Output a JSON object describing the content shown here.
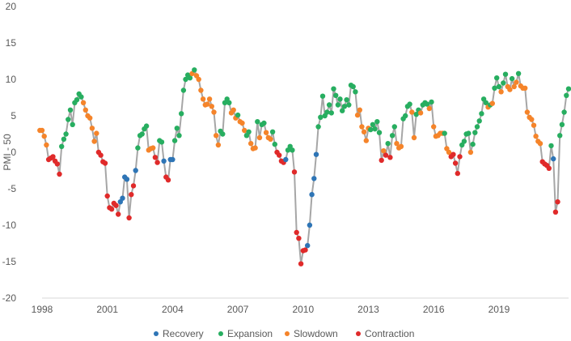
{
  "chart_data": {
    "type": "line",
    "title": "",
    "xlabel": "",
    "ylabel": "PMI - 50",
    "xlim": [
      1998,
      2022.2
    ],
    "ylim": [
      -20,
      20
    ],
    "y_ticks": [
      "20",
      "15",
      "10",
      "5",
      "0",
      "-5",
      "-10",
      "-15",
      "-20"
    ],
    "x_ticks": [
      "1998",
      "2001",
      "2004",
      "2007",
      "2010",
      "2013",
      "2016",
      "2019"
    ],
    "grid": false,
    "legend_position": "bottom",
    "line_color": "#a6a6a6",
    "phase_colors": {
      "Recovery": "#2e75b6",
      "Expansion": "#27ae60",
      "Slowdown": "#f5842a",
      "Contraction": "#e02a2a"
    },
    "legend": [
      "Recovery",
      "Expansion",
      "Slowdown",
      "Contraction"
    ],
    "points": [
      [
        1997.9,
        3.0,
        "Slowdown"
      ],
      [
        1998.0,
        3.0,
        "Slowdown"
      ],
      [
        1998.1,
        2.2,
        "Slowdown"
      ],
      [
        1998.2,
        1.0,
        "Slowdown"
      ],
      [
        1998.3,
        -1.0,
        "Contraction"
      ],
      [
        1998.4,
        -0.8,
        "Contraction"
      ],
      [
        1998.5,
        -0.6,
        "Contraction"
      ],
      [
        1998.6,
        -1.2,
        "Contraction"
      ],
      [
        1998.7,
        -1.6,
        "Contraction"
      ],
      [
        1998.8,
        -3.0,
        "Contraction"
      ],
      [
        1998.9,
        0.8,
        "Expansion"
      ],
      [
        1999.0,
        1.8,
        "Expansion"
      ],
      [
        1999.1,
        2.5,
        "Expansion"
      ],
      [
        1999.2,
        4.5,
        "Expansion"
      ],
      [
        1999.3,
        5.8,
        "Expansion"
      ],
      [
        1999.4,
        3.8,
        "Expansion"
      ],
      [
        1999.5,
        6.8,
        "Expansion"
      ],
      [
        1999.6,
        7.2,
        "Expansion"
      ],
      [
        1999.7,
        8.0,
        "Expansion"
      ],
      [
        1999.8,
        7.6,
        "Expansion"
      ],
      [
        1999.9,
        6.8,
        "Slowdown"
      ],
      [
        2000.0,
        5.8,
        "Slowdown"
      ],
      [
        2000.1,
        5.0,
        "Slowdown"
      ],
      [
        2000.2,
        4.7,
        "Slowdown"
      ],
      [
        2000.3,
        3.3,
        "Slowdown"
      ],
      [
        2000.4,
        1.5,
        "Slowdown"
      ],
      [
        2000.5,
        2.6,
        "Slowdown"
      ],
      [
        2000.6,
        0.0,
        "Contraction"
      ],
      [
        2000.7,
        -0.4,
        "Contraction"
      ],
      [
        2000.8,
        -1.3,
        "Contraction"
      ],
      [
        2000.9,
        -1.5,
        "Contraction"
      ],
      [
        2001.0,
        -6.0,
        "Contraction"
      ],
      [
        2001.1,
        -7.6,
        "Contraction"
      ],
      [
        2001.2,
        -7.8,
        "Contraction"
      ],
      [
        2001.3,
        -7.0,
        "Contraction"
      ],
      [
        2001.4,
        -7.3,
        "Contraction"
      ],
      [
        2001.5,
        -8.5,
        "Contraction"
      ],
      [
        2001.6,
        -6.8,
        "Recovery"
      ],
      [
        2001.7,
        -6.3,
        "Recovery"
      ],
      [
        2001.8,
        -3.4,
        "Recovery"
      ],
      [
        2001.9,
        -3.7,
        "Recovery"
      ],
      [
        2002.0,
        -9.0,
        "Contraction"
      ],
      [
        2002.1,
        -5.8,
        "Contraction"
      ],
      [
        2002.2,
        -4.6,
        "Contraction"
      ],
      [
        2002.3,
        -2.5,
        "Recovery"
      ],
      [
        2002.4,
        0.6,
        "Expansion"
      ],
      [
        2002.5,
        2.3,
        "Expansion"
      ],
      [
        2002.6,
        2.5,
        "Expansion"
      ],
      [
        2002.7,
        3.2,
        "Expansion"
      ],
      [
        2002.8,
        3.6,
        "Expansion"
      ],
      [
        2002.9,
        0.3,
        "Slowdown"
      ],
      [
        2003.0,
        0.5,
        "Slowdown"
      ],
      [
        2003.1,
        0.6,
        "Slowdown"
      ],
      [
        2003.2,
        -0.7,
        "Contraction"
      ],
      [
        2003.3,
        -1.4,
        "Contraction"
      ],
      [
        2003.4,
        1.6,
        "Expansion"
      ],
      [
        2003.5,
        1.4,
        "Expansion"
      ],
      [
        2003.6,
        -1.2,
        "Recovery"
      ],
      [
        2003.7,
        -3.4,
        "Contraction"
      ],
      [
        2003.8,
        -3.8,
        "Contraction"
      ],
      [
        2003.9,
        -1.0,
        "Recovery"
      ],
      [
        2004.0,
        -1.0,
        "Recovery"
      ],
      [
        2004.1,
        1.6,
        "Expansion"
      ],
      [
        2004.2,
        3.3,
        "Expansion"
      ],
      [
        2004.3,
        2.3,
        "Expansion"
      ],
      [
        2004.4,
        5.3,
        "Expansion"
      ],
      [
        2004.5,
        8.5,
        "Expansion"
      ],
      [
        2004.6,
        10.0,
        "Expansion"
      ],
      [
        2004.7,
        10.6,
        "Expansion"
      ],
      [
        2004.8,
        10.2,
        "Expansion"
      ],
      [
        2004.9,
        10.8,
        "Slowdown"
      ],
      [
        2005.0,
        11.3,
        "Expansion"
      ],
      [
        2005.1,
        10.5,
        "Slowdown"
      ],
      [
        2005.2,
        10.0,
        "Slowdown"
      ],
      [
        2005.3,
        8.5,
        "Slowdown"
      ],
      [
        2005.4,
        7.3,
        "Slowdown"
      ],
      [
        2005.5,
        6.5,
        "Slowdown"
      ],
      [
        2005.6,
        6.6,
        "Slowdown"
      ],
      [
        2005.7,
        7.3,
        "Slowdown"
      ],
      [
        2005.8,
        6.3,
        "Slowdown"
      ],
      [
        2005.9,
        5.5,
        "Slowdown"
      ],
      [
        2006.0,
        2.3,
        "Slowdown"
      ],
      [
        2006.1,
        1.0,
        "Slowdown"
      ],
      [
        2006.2,
        2.9,
        "Expansion"
      ],
      [
        2006.3,
        2.5,
        "Expansion"
      ],
      [
        2006.4,
        6.8,
        "Expansion"
      ],
      [
        2006.5,
        7.3,
        "Expansion"
      ],
      [
        2006.6,
        6.8,
        "Expansion"
      ],
      [
        2006.7,
        5.4,
        "Slowdown"
      ],
      [
        2006.8,
        5.8,
        "Slowdown"
      ],
      [
        2006.9,
        4.7,
        "Slowdown"
      ],
      [
        2007.0,
        5.1,
        "Expansion"
      ],
      [
        2007.1,
        4.2,
        "Slowdown"
      ],
      [
        2007.2,
        4.0,
        "Slowdown"
      ],
      [
        2007.3,
        3.0,
        "Slowdown"
      ],
      [
        2007.4,
        2.3,
        "Expansion"
      ],
      [
        2007.5,
        2.8,
        "Expansion"
      ],
      [
        2007.6,
        1.2,
        "Slowdown"
      ],
      [
        2007.7,
        0.5,
        "Slowdown"
      ],
      [
        2007.8,
        0.6,
        "Slowdown"
      ],
      [
        2007.9,
        4.2,
        "Expansion"
      ],
      [
        2008.0,
        2.0,
        "Slowdown"
      ],
      [
        2008.1,
        3.8,
        "Expansion"
      ],
      [
        2008.2,
        4.0,
        "Expansion"
      ],
      [
        2008.3,
        2.7,
        "Slowdown"
      ],
      [
        2008.4,
        2.0,
        "Slowdown"
      ],
      [
        2008.5,
        1.8,
        "Slowdown"
      ],
      [
        2008.6,
        2.8,
        "Expansion"
      ],
      [
        2008.7,
        1.1,
        "Expansion"
      ],
      [
        2008.8,
        0.0,
        "Contraction"
      ],
      [
        2008.9,
        -0.4,
        "Contraction"
      ],
      [
        2009.0,
        -1.2,
        "Contraction"
      ],
      [
        2009.1,
        -1.4,
        "Contraction"
      ],
      [
        2009.2,
        -1.0,
        "Recovery"
      ],
      [
        2009.3,
        0.3,
        "Expansion"
      ],
      [
        2009.4,
        0.8,
        "Expansion"
      ],
      [
        2009.5,
        0.3,
        "Expansion"
      ],
      [
        2009.6,
        -2.7,
        "Contraction"
      ],
      [
        2009.7,
        -11.0,
        "Contraction"
      ],
      [
        2009.8,
        -11.8,
        "Contraction"
      ],
      [
        2009.9,
        -15.3,
        "Contraction"
      ],
      [
        2010.0,
        -13.5,
        "Contraction"
      ],
      [
        2010.1,
        -13.4,
        "Contraction"
      ],
      [
        2010.2,
        -12.8,
        "Recovery"
      ],
      [
        2010.3,
        -10.0,
        "Recovery"
      ],
      [
        2010.4,
        -5.8,
        "Recovery"
      ],
      [
        2010.5,
        -3.6,
        "Recovery"
      ],
      [
        2010.6,
        -0.3,
        "Recovery"
      ],
      [
        2010.7,
        3.5,
        "Expansion"
      ],
      [
        2010.8,
        4.8,
        "Expansion"
      ],
      [
        2010.9,
        7.7,
        "Expansion"
      ],
      [
        2011.0,
        5.0,
        "Expansion"
      ],
      [
        2011.1,
        5.5,
        "Expansion"
      ],
      [
        2011.2,
        6.5,
        "Expansion"
      ],
      [
        2011.3,
        5.4,
        "Expansion"
      ],
      [
        2011.4,
        8.7,
        "Expansion"
      ],
      [
        2011.5,
        7.8,
        "Expansion"
      ],
      [
        2011.6,
        6.5,
        "Expansion"
      ],
      [
        2011.7,
        7.3,
        "Expansion"
      ],
      [
        2011.8,
        5.7,
        "Expansion"
      ],
      [
        2011.9,
        6.3,
        "Expansion"
      ],
      [
        2012.0,
        7.2,
        "Expansion"
      ],
      [
        2012.1,
        6.5,
        "Expansion"
      ],
      [
        2012.2,
        9.2,
        "Expansion"
      ],
      [
        2012.3,
        9.0,
        "Expansion"
      ],
      [
        2012.4,
        8.3,
        "Expansion"
      ],
      [
        2012.5,
        5.1,
        "Slowdown"
      ],
      [
        2012.6,
        5.8,
        "Slowdown"
      ],
      [
        2012.7,
        3.5,
        "Slowdown"
      ],
      [
        2012.8,
        2.8,
        "Slowdown"
      ],
      [
        2012.9,
        1.6,
        "Slowdown"
      ],
      [
        2013.0,
        3.3,
        "Slowdown"
      ],
      [
        2013.1,
        3.1,
        "Expansion"
      ],
      [
        2013.2,
        3.8,
        "Expansion"
      ],
      [
        2013.3,
        3.2,
        "Expansion"
      ],
      [
        2013.4,
        4.2,
        "Expansion"
      ],
      [
        2013.5,
        2.7,
        "Expansion"
      ],
      [
        2013.6,
        -1.1,
        "Contraction"
      ],
      [
        2013.7,
        0.2,
        "Slowdown"
      ],
      [
        2013.8,
        -0.4,
        "Contraction"
      ],
      [
        2013.9,
        1.2,
        "Expansion"
      ],
      [
        2014.0,
        -0.7,
        "Contraction"
      ],
      [
        2014.1,
        2.3,
        "Expansion"
      ],
      [
        2014.2,
        3.5,
        "Expansion"
      ],
      [
        2014.3,
        1.2,
        "Slowdown"
      ],
      [
        2014.4,
        0.6,
        "Slowdown"
      ],
      [
        2014.5,
        0.8,
        "Slowdown"
      ],
      [
        2014.6,
        4.6,
        "Expansion"
      ],
      [
        2014.7,
        5.0,
        "Expansion"
      ],
      [
        2014.8,
        6.3,
        "Expansion"
      ],
      [
        2014.9,
        6.6,
        "Expansion"
      ],
      [
        2015.0,
        5.5,
        "Slowdown"
      ],
      [
        2015.1,
        2.0,
        "Slowdown"
      ],
      [
        2015.2,
        5.2,
        "Expansion"
      ],
      [
        2015.3,
        5.8,
        "Expansion"
      ],
      [
        2015.4,
        5.4,
        "Slowdown"
      ],
      [
        2015.5,
        6.5,
        "Expansion"
      ],
      [
        2015.6,
        6.8,
        "Expansion"
      ],
      [
        2015.7,
        6.6,
        "Expansion"
      ],
      [
        2015.8,
        6.0,
        "Slowdown"
      ],
      [
        2015.9,
        6.9,
        "Expansion"
      ],
      [
        2016.0,
        3.5,
        "Slowdown"
      ],
      [
        2016.1,
        2.2,
        "Slowdown"
      ],
      [
        2016.2,
        2.3,
        "Slowdown"
      ],
      [
        2016.3,
        2.6,
        "Slowdown"
      ],
      [
        2016.4,
        2.6,
        "Slowdown"
      ],
      [
        2016.5,
        2.6,
        "Expansion"
      ],
      [
        2016.6,
        0.5,
        "Slowdown"
      ],
      [
        2016.7,
        0.0,
        "Slowdown"
      ],
      [
        2016.8,
        -0.6,
        "Contraction"
      ],
      [
        2016.9,
        -0.3,
        "Contraction"
      ],
      [
        2017.0,
        -1.5,
        "Contraction"
      ],
      [
        2017.1,
        -2.9,
        "Contraction"
      ],
      [
        2017.2,
        -0.6,
        "Contraction"
      ],
      [
        2017.3,
        1.0,
        "Expansion"
      ],
      [
        2017.4,
        1.5,
        "Expansion"
      ],
      [
        2017.5,
        2.5,
        "Expansion"
      ],
      [
        2017.6,
        2.6,
        "Expansion"
      ],
      [
        2017.7,
        0.0,
        "Slowdown"
      ],
      [
        2017.8,
        1.1,
        "Expansion"
      ],
      [
        2017.9,
        2.7,
        "Expansion"
      ],
      [
        2018.0,
        3.5,
        "Expansion"
      ],
      [
        2018.1,
        4.3,
        "Expansion"
      ],
      [
        2018.2,
        5.3,
        "Expansion"
      ],
      [
        2018.3,
        7.3,
        "Expansion"
      ],
      [
        2018.4,
        6.8,
        "Expansion"
      ],
      [
        2018.5,
        6.2,
        "Slowdown"
      ],
      [
        2018.6,
        6.5,
        "Expansion"
      ],
      [
        2018.7,
        6.7,
        "Slowdown"
      ],
      [
        2018.8,
        8.8,
        "Expansion"
      ],
      [
        2018.9,
        10.2,
        "Expansion"
      ],
      [
        2019.0,
        9.0,
        "Expansion"
      ],
      [
        2019.1,
        8.3,
        "Slowdown"
      ],
      [
        2019.2,
        9.5,
        "Expansion"
      ],
      [
        2019.3,
        10.7,
        "Expansion"
      ],
      [
        2019.4,
        9.0,
        "Slowdown"
      ],
      [
        2019.5,
        8.6,
        "Slowdown"
      ],
      [
        2019.6,
        10.1,
        "Expansion"
      ],
      [
        2019.7,
        9.0,
        "Slowdown"
      ],
      [
        2019.8,
        9.6,
        "Slowdown"
      ],
      [
        2019.9,
        10.8,
        "Expansion"
      ],
      [
        2020.0,
        9.1,
        "Slowdown"
      ],
      [
        2020.1,
        8.8,
        "Slowdown"
      ],
      [
        2020.2,
        8.8,
        "Slowdown"
      ],
      [
        2020.3,
        5.5,
        "Slowdown"
      ],
      [
        2020.4,
        4.8,
        "Slowdown"
      ],
      [
        2020.5,
        4.5,
        "Slowdown"
      ],
      [
        2020.6,
        3.7,
        "Slowdown"
      ],
      [
        2020.7,
        2.2,
        "Slowdown"
      ],
      [
        2020.8,
        1.5,
        "Slowdown"
      ],
      [
        2020.9,
        1.2,
        "Slowdown"
      ],
      [
        2021.0,
        -1.3,
        "Contraction"
      ],
      [
        2021.1,
        -1.6,
        "Contraction"
      ],
      [
        2021.2,
        -1.8,
        "Contraction"
      ],
      [
        2021.3,
        -2.2,
        "Contraction"
      ],
      [
        2021.4,
        0.9,
        "Expansion"
      ],
      [
        2021.5,
        -0.9,
        "Recovery"
      ],
      [
        2021.6,
        -8.2,
        "Contraction"
      ],
      [
        2021.7,
        -6.8,
        "Contraction"
      ],
      [
        2021.8,
        2.3,
        "Expansion"
      ],
      [
        2021.9,
        3.8,
        "Expansion"
      ],
      [
        2022.0,
        5.5,
        "Expansion"
      ],
      [
        2022.1,
        7.8,
        "Expansion"
      ],
      [
        2022.2,
        8.7,
        "Expansion"
      ]
    ]
  }
}
